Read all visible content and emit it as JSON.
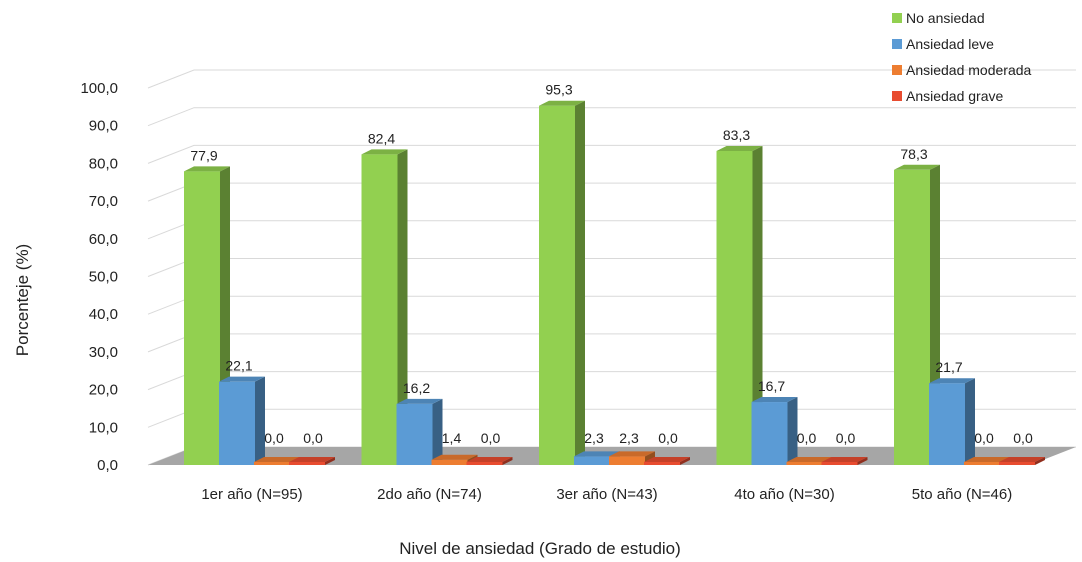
{
  "chart_data": {
    "type": "bar",
    "title": "",
    "xlabel": "Nivel de ansiedad (Grado de estudio)",
    "ylabel": "Porcenteje (%)",
    "ylim": [
      0,
      100
    ],
    "yticks": [
      "0,0",
      "10,0",
      "20,0",
      "30,0",
      "40,0",
      "50,0",
      "60,0",
      "70,0",
      "80,0",
      "90,0",
      "100,0"
    ],
    "categories": [
      "1er año (N=95)",
      "2do año (N=74)",
      "3er año (N=43)",
      "4to año (N=30)",
      "5to año (N=46)"
    ],
    "legend_position": "top-right",
    "grid": true,
    "series": [
      {
        "name": "No ansiedad",
        "color": "#92d050",
        "values": [
          77.9,
          82.4,
          95.3,
          83.3,
          78.3
        ],
        "labels": [
          "77,9",
          "82,4",
          "95,3",
          "83,3",
          "78,3"
        ]
      },
      {
        "name": "Ansiedad leve",
        "color": "#5b9bd5",
        "values": [
          22.1,
          16.2,
          2.3,
          16.7,
          21.7
        ],
        "labels": [
          "22,1",
          "16,2",
          "2,3",
          "16,7",
          "21,7"
        ]
      },
      {
        "name": "Ansiedad moderada",
        "color": "#ed7d31",
        "values": [
          0.0,
          1.4,
          2.3,
          0.0,
          0.0
        ],
        "labels": [
          "0,0",
          "1,4",
          "2,3",
          "0,0",
          "0,0"
        ]
      },
      {
        "name": "Ansiedad grave",
        "color": "#e84c30",
        "values": [
          0.0,
          0.0,
          0.0,
          0.0,
          0.0
        ],
        "labels": [
          "0,0",
          "0,0",
          "0,0",
          "0,0",
          "0,0"
        ]
      }
    ]
  }
}
